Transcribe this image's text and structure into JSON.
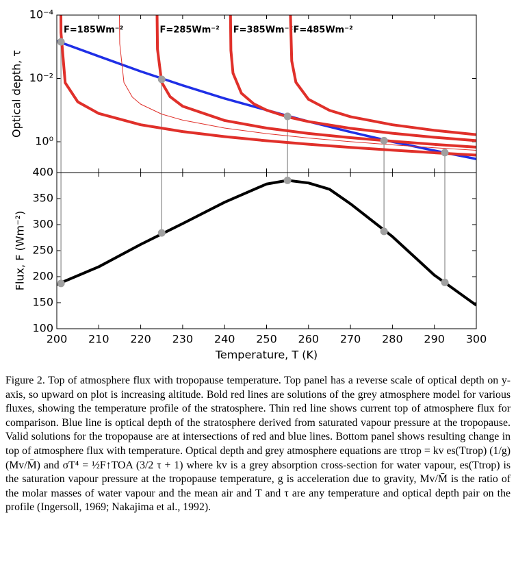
{
  "chart_data": [
    {
      "type": "line",
      "ylabel": "Optical depth, τ",
      "xlim": [
        200,
        300
      ],
      "xticks": [
        200,
        210,
        220,
        230,
        240,
        250,
        260,
        270,
        280,
        290,
        300
      ],
      "xticklabels": false,
      "ylim": [
        0.0001,
        9.4
      ],
      "ylog": true,
      "yinvert": true,
      "yticks": [
        {
          "value": 0.0001,
          "label": "10⁻⁴"
        },
        {
          "value": 0.01,
          "label": "10⁻²"
        },
        {
          "value": 1,
          "label": "10⁰"
        }
      ],
      "series": [
        {
          "color": "#1f2fe6",
          "width": 3.5,
          "x": [
            200,
            210,
            220,
            230,
            240,
            250,
            260,
            270,
            280,
            290,
            300
          ],
          "values": [
            0.00066,
            0.002,
            0.006,
            0.0166,
            0.043,
            0.1,
            0.23,
            0.49,
            1.0,
            1.9,
            3.5
          ]
        },
        {
          "name": "F=185Wm⁻²",
          "color": "#e0302a",
          "width": 4,
          "x": [
            200.98,
            201,
            202,
            205,
            210,
            220,
            230,
            240,
            250,
            260,
            270,
            280,
            290,
            300
          ],
          "values": [
            0.0001,
            0.00036,
            0.0137,
            0.0551,
            0.128,
            0.291,
            0.477,
            0.689,
            0.93,
            1.201,
            1.505,
            1.845,
            2.224,
            2.643
          ]
        },
        {
          "color": "#e0302a",
          "width": 1,
          "x": [
            214.93,
            215,
            216,
            218,
            220,
            225,
            230,
            240,
            250,
            260,
            270,
            280,
            290,
            300
          ],
          "values": [
            0.0001,
            0.0008,
            0.0134,
            0.0389,
            0.0651,
            0.134,
            0.2075,
            0.37,
            0.554,
            0.761,
            0.994,
            1.254,
            1.543,
            1.864
          ]
        },
        {
          "name": "F=285Wm⁻²",
          "color": "#e0302a",
          "width": 4,
          "x": [
            223.9,
            224,
            225,
            227,
            230,
            240,
            250,
            260,
            270,
            280,
            290,
            300
          ],
          "values": [
            0.0001,
            0.0012,
            0.0132,
            0.0377,
            0.0757,
            0.213,
            0.37,
            0.546,
            0.743,
            0.964,
            1.209,
            1.482
          ]
        },
        {
          "name": "F=385Wm⁻²",
          "color": "#e0302a",
          "width": 4,
          "x": [
            241.4,
            241.5,
            242,
            244,
            247,
            250,
            255,
            260,
            270,
            280,
            290,
            300
          ],
          "values": [
            0.0001,
            0.0013,
            0.0068,
            0.0293,
            0.0642,
            0.1004,
            0.1636,
            0.2307,
            0.377,
            0.54,
            0.722,
            0.924
          ]
        },
        {
          "name": "F=485Wm⁻²",
          "color": "#e0302a",
          "width": 4,
          "x": [
            255.7,
            256,
            257,
            260,
            265,
            270,
            280,
            290,
            300
          ],
          "values": [
            0.0001,
            0.0028,
            0.0133,
            0.0457,
            0.102,
            0.162,
            0.291,
            0.436,
            0.596
          ]
        },
        {
          "color": "#a0a0a0",
          "style": "markers",
          "x": [
            201,
            225,
            255,
            278,
            292.5
          ],
          "values": [
            0.0007,
            0.0107,
            0.158,
            0.92,
            2.2
          ]
        }
      ]
    },
    {
      "type": "line",
      "xlabel": "Temperature, T (K)",
      "ylabel": "Flux, F (Wm⁻²)",
      "xlim": [
        200,
        300
      ],
      "xticks": [
        200,
        210,
        220,
        230,
        240,
        250,
        260,
        270,
        280,
        290,
        300
      ],
      "ylim": [
        100,
        400
      ],
      "yticks": [
        100,
        150,
        200,
        250,
        300,
        350,
        400
      ],
      "series": [
        {
          "color": "#000000",
          "width": 4,
          "x": [
            200,
            210,
            220,
            230,
            240,
            250,
            255,
            260,
            265,
            270,
            280,
            290,
            300
          ],
          "values": [
            185,
            219,
            262,
            302,
            343,
            378,
            385,
            380,
            368,
            340,
            277,
            203,
            145
          ]
        },
        {
          "color": "#a0a0a0",
          "style": "markers",
          "x": [
            201,
            225,
            255,
            278,
            292.5
          ],
          "values": [
            187,
            284,
            385,
            287,
            189
          ]
        }
      ]
    }
  ],
  "caption": "Figure 2. Top of atmosphere flux with tropopause temperature. Top panel has a reverse scale of optical depth on y-axis, so upward on plot is increasing altitude. Bold red lines are solutions of the grey atmosphere model for various fluxes, showing the temperature profile of the stratosphere. Thin red line shows current top of atmosphere flux for comparison. Blue line is optical depth of the stratosphere derived from saturated vapour pressure at the tropopause. Valid solutions for the tropopause are at intersections of red and blue lines. Bottom panel shows resulting change in top of atmosphere flux with temperature. Optical depth and grey atmosphere equations are τtrop = kv es(Ttrop) (1/g)(Mv/M̄) and σT⁴ = ½F↑TOA (3/2 τ + 1) where kv is a grey absorption cross-section for water vapour, es(Ttrop) is the saturation vapour pressure at the tropopause temperature, g is acceleration due to gravity, Mv/M̄ is the ratio of the molar masses of water vapour and the mean air and T and τ are any temperature and optical depth pair on the profile (Ingersoll, 1969; Nakajima et al., 1992)."
}
